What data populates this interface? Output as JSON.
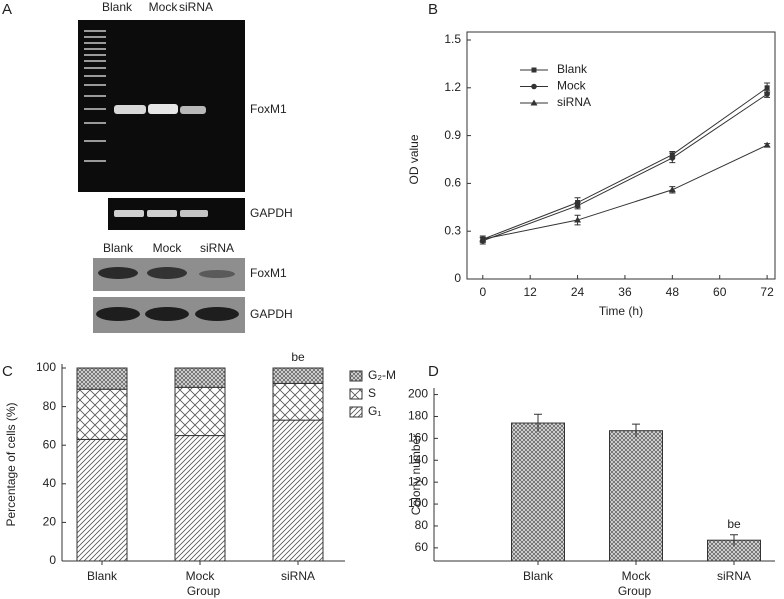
{
  "panel_labels": [
    "A",
    "B",
    "C",
    "D"
  ],
  "gel": {
    "rt_pcr_lanes": [
      "Blank",
      "Mock",
      "siRNA"
    ],
    "rt_pcr_bands": [
      "FoxM1",
      "GAPDH"
    ],
    "western_lanes": [
      "Blank",
      "Mock",
      "siRNA"
    ],
    "western_bands": [
      "FoxM1",
      "GAPDH"
    ]
  },
  "chart_data": [
    {
      "type": "line",
      "xlabel": "Time (h)",
      "ylabel": "OD value",
      "x": [
        0,
        24,
        48,
        72
      ],
      "xlim": [
        -4,
        74
      ],
      "xticks": [
        0,
        12,
        24,
        36,
        48,
        60,
        72
      ],
      "ylim": [
        0,
        1.5
      ],
      "yticks": [
        0,
        0.3,
        0.6,
        0.9,
        1.2,
        1.5
      ],
      "legend": "upper left",
      "series": [
        {
          "name": "Blank",
          "marker": "square",
          "color": "#333333",
          "values": [
            0.25,
            0.48,
            0.78,
            1.2
          ],
          "errors": [
            0.02,
            0.03,
            0.02,
            0.03
          ]
        },
        {
          "name": "Mock",
          "marker": "circle",
          "color": "#333333",
          "values": [
            0.24,
            0.46,
            0.76,
            1.16
          ],
          "errors": [
            0.02,
            0.02,
            0.03,
            0.02
          ]
        },
        {
          "name": "siRNA",
          "marker": "triangle",
          "color": "#333333",
          "values": [
            0.25,
            0.37,
            0.56,
            0.84
          ],
          "errors": [
            0.01,
            0.03,
            0.02,
            0.01
          ]
        }
      ]
    },
    {
      "type": "stacked_bar",
      "xlabel": "Group",
      "ylabel": "Percentage of cells (%)",
      "categories": [
        "Blank",
        "Mock",
        "siRNA"
      ],
      "ylim": [
        0,
        100
      ],
      "yticks": [
        0,
        20,
        40,
        60,
        80,
        100
      ],
      "legend": "upper right",
      "series": [
        {
          "name": "G₁",
          "pattern": "diagonal",
          "values": [
            63,
            65,
            73
          ]
        },
        {
          "name": "S",
          "pattern": "cross",
          "values": [
            26,
            25,
            19
          ]
        },
        {
          "name": "G₂-M",
          "pattern": "crosshatch",
          "values": [
            11,
            10,
            8
          ]
        }
      ],
      "annotations": [
        null,
        null,
        "be"
      ]
    },
    {
      "type": "bar",
      "xlabel": "Group",
      "ylabel": "Colony number",
      "categories": [
        "Blank",
        "Mock",
        "siRNA"
      ],
      "values": [
        174,
        167,
        67
      ],
      "errors": [
        8,
        6,
        5
      ],
      "pattern": "crosshatch",
      "ylim": [
        48,
        206
      ],
      "yticks": [
        60,
        80,
        100,
        120,
        140,
        160,
        180,
        200
      ],
      "annotations": [
        null,
        null,
        "be"
      ]
    }
  ]
}
